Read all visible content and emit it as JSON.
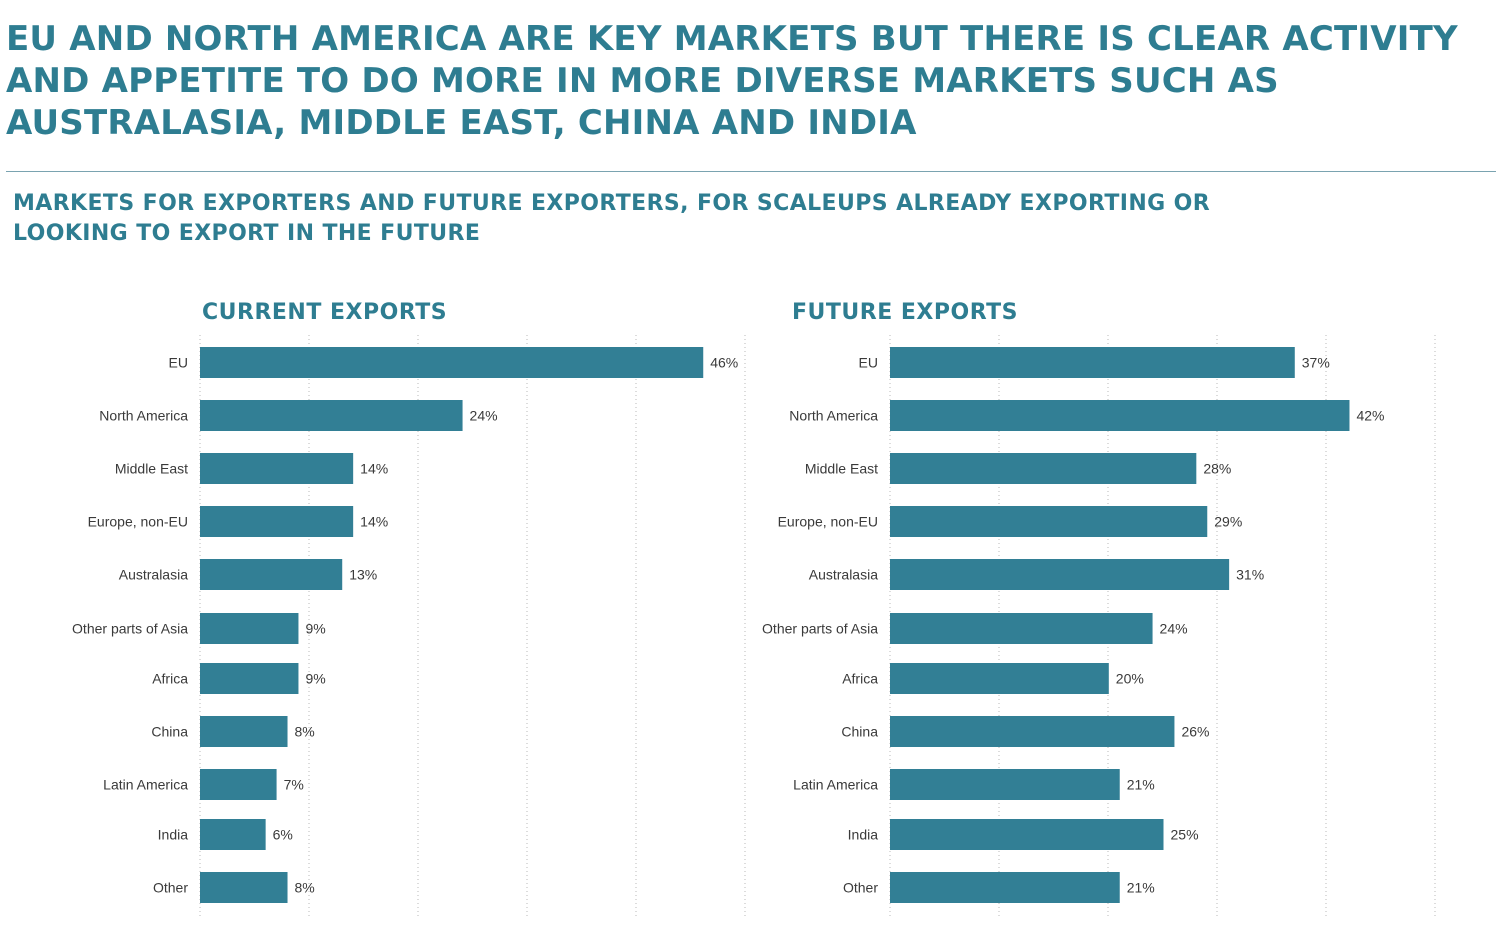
{
  "header": {
    "headline": "EU AND NORTH AMERICA ARE KEY MARKETS BUT THERE IS CLEAR ACTIVITY AND APPETITE TO DO MORE IN MORE DIVERSE MARKETS SUCH AS AUSTRALASIA, MIDDLE EAST, CHINA AND INDIA",
    "subheadline": "MARKETS FOR EXPORTERS AND FUTURE EXPORTERS, FOR SCALEUPS ALREADY EXPORTING OR LOOKING TO EXPORT IN THE FUTURE"
  },
  "colors": {
    "accent": "#2e7d91",
    "bar": "#327f95",
    "text": "#3a3a3a"
  },
  "chart_data": [
    {
      "type": "bar",
      "orientation": "horizontal",
      "title": "CURRENT EXPORTS",
      "categories": [
        "EU",
        "North America",
        "Middle East",
        "Europe, non-EU",
        "Australasia",
        "Other parts of Asia",
        "Africa",
        "China",
        "Latin America",
        "India",
        "Other"
      ],
      "values": [
        46,
        24,
        14,
        14,
        13,
        9,
        9,
        8,
        7,
        6,
        8
      ],
      "value_labels": [
        "46%",
        "24%",
        "14%",
        "14%",
        "13%",
        "9%",
        "9%",
        "8%",
        "7%",
        "6%",
        "8%"
      ],
      "xlim": [
        0,
        50
      ],
      "grid": true,
      "xlabel": "",
      "ylabel": ""
    },
    {
      "type": "bar",
      "orientation": "horizontal",
      "title": "FUTURE EXPORTS",
      "categories": [
        "EU",
        "North America",
        "Middle East",
        "Europe, non-EU",
        "Australasia",
        "Other parts of Asia",
        "Africa",
        "China",
        "Latin America",
        "India",
        "Other"
      ],
      "values": [
        37,
        42,
        28,
        29,
        31,
        24,
        20,
        26,
        21,
        25,
        21
      ],
      "value_labels": [
        "37%",
        "42%",
        "28%",
        "29%",
        "31%",
        "24%",
        "20%",
        "26%",
        "21%",
        "25%",
        "21%"
      ],
      "xlim": [
        0,
        50
      ],
      "grid": true,
      "xlabel": "",
      "ylabel": ""
    }
  ]
}
